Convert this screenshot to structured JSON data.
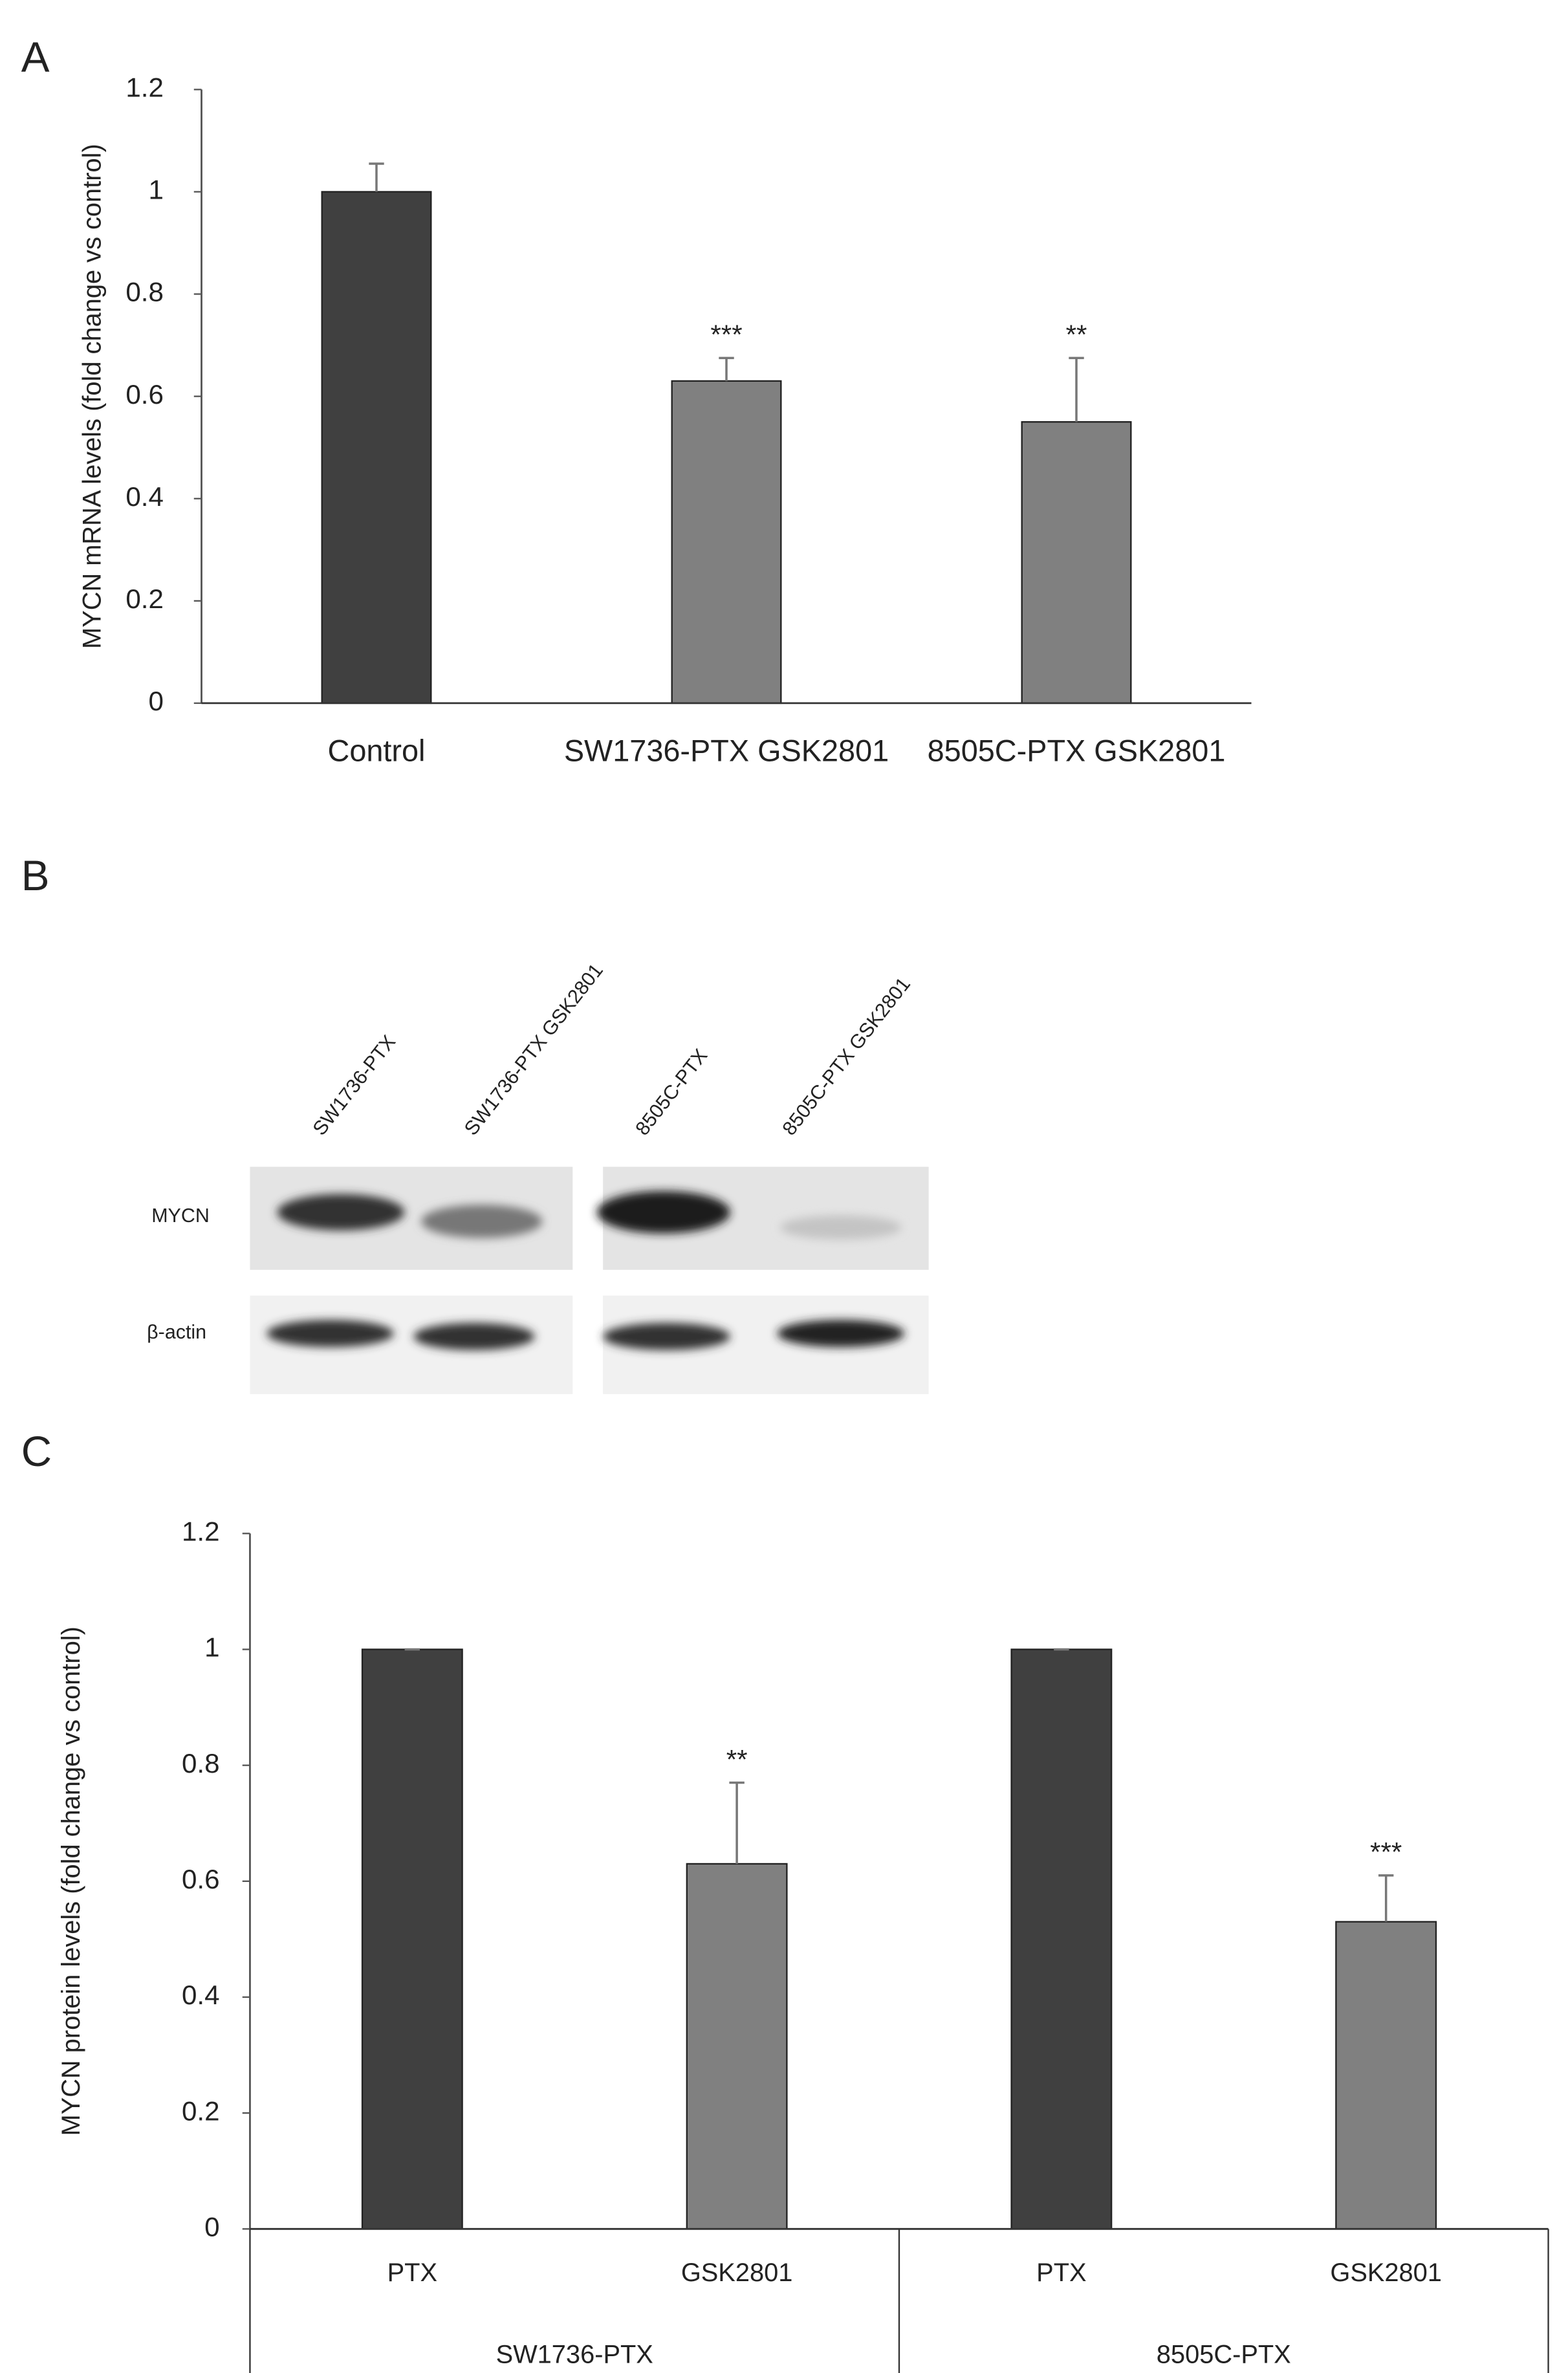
{
  "chart_data": [
    {
      "type": "bar",
      "panel": "A",
      "ylabel": "MYCN mRNA levels (fold change vs control)",
      "categories": [
        "Control",
        "SW1736-PTX GSK2801",
        "8505C-PTX GSK2801"
      ],
      "values": [
        1,
        0.63,
        0.55
      ],
      "errors": [
        0.055,
        0.045,
        0.125
      ],
      "annotations": [
        null,
        "***",
        "**"
      ],
      "colors": [
        "#404040",
        "#808080",
        "#808080"
      ],
      "ylim": [
        0,
        1.2
      ],
      "yticks": [
        0,
        0.2,
        0.4,
        0.6,
        0.8,
        1,
        1.2
      ]
    },
    {
      "type": "bar",
      "panel": "C",
      "ylabel": "MYCN protein levels (fold change vs control)",
      "categories": [
        "PTX",
        "GSK2801",
        "PTX",
        "GSK2801"
      ],
      "groups": [
        "SW1736-PTX",
        "8505C-PTX"
      ],
      "values": [
        1,
        0.63,
        1,
        0.53
      ],
      "errors": [
        0,
        0.14,
        0,
        0.08
      ],
      "annotations": [
        null,
        "**",
        null,
        "***"
      ],
      "colors": [
        "#404040",
        "#808080",
        "#404040",
        "#808080"
      ],
      "ylim": [
        0,
        1.2
      ],
      "yticks": [
        0,
        0.2,
        0.4,
        0.6,
        0.8,
        1,
        1.2
      ]
    }
  ],
  "blot": {
    "panel": "B",
    "lanes": [
      "SW1736-PTX",
      "SW1736-PTX GSK2801",
      "8505C-PTX",
      "8505C-PTX GSK2801"
    ],
    "rows": [
      "MYCN",
      "β-actin"
    ]
  }
}
